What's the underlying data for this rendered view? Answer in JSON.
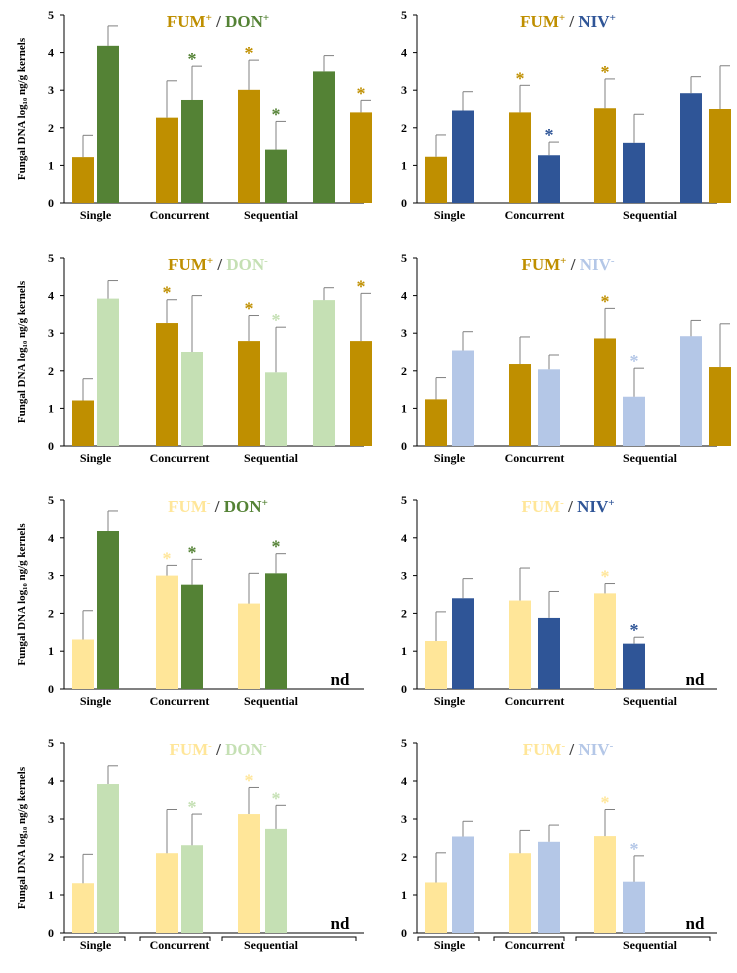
{
  "y_axis_label": "Fungal DNA log₁₀ ng/g kernels",
  "colors": {
    "fum_plus": "#BF8F00",
    "fum_minus": "#FFE699",
    "don_plus": "#548235",
    "don_minus": "#C5E0B4",
    "niv_plus": "#2F5597",
    "niv_minus": "#B4C7E7",
    "axis": "#000000",
    "error_bar": "#808080",
    "title_separator": "#404040"
  },
  "chart_data": [
    {
      "type": "bar",
      "title": {
        "left": "FUM",
        "left_sup": "+",
        "sep": " / ",
        "right": "DON",
        "right_sup": "+"
      },
      "title_colors": [
        "#BF8F00",
        "#548235"
      ],
      "ylim": [
        0,
        5
      ],
      "yticks": [
        0,
        1,
        2,
        3,
        4,
        5
      ],
      "ylabel": "Fungal DNA log₁₀ ng/g kernels",
      "groups": [
        {
          "label": "Single",
          "bars": [
            {
              "series": "FUM+",
              "value": 1.22,
              "err": 0.58,
              "color": "#BF8F00",
              "star": false
            },
            {
              "series": "DON+",
              "value": 4.18,
              "err": 0.53,
              "color": "#548235",
              "star": false
            }
          ]
        },
        {
          "label": "Concurrent",
          "bars": [
            {
              "series": "FUM+",
              "value": 2.27,
              "err": 0.98,
              "color": "#BF8F00",
              "star": false
            },
            {
              "series": "DON+",
              "value": 2.74,
              "err": 0.9,
              "color": "#548235",
              "star": true
            }
          ]
        },
        {
          "label": "Sequential",
          "bars": [
            {
              "series": "FUM+",
              "value": 3.01,
              "err": 0.79,
              "color": "#BF8F00",
              "star": true
            },
            {
              "series": "DON+",
              "value": 1.42,
              "err": 0.75,
              "color": "#548235",
              "star": true
            }
          ]
        },
        {
          "label": "",
          "bars": [
            {
              "series": "DON+",
              "value": 3.5,
              "err": 0.42,
              "color": "#548235",
              "star": false
            },
            {
              "series": "FUM+",
              "value": 2.41,
              "err": 0.32,
              "color": "#BF8F00",
              "star": true
            }
          ]
        }
      ],
      "group_labels": [
        "Single",
        "Concurrent",
        "Sequential"
      ],
      "nd": ""
    },
    {
      "type": "bar",
      "title": {
        "left": "FUM",
        "left_sup": "+",
        "sep": " / ",
        "right": "NIV",
        "right_sup": "+"
      },
      "title_colors": [
        "#BF8F00",
        "#2F5597"
      ],
      "ylim": [
        0,
        5
      ],
      "yticks": [
        0,
        1,
        2,
        3,
        4,
        5
      ],
      "ylabel": "",
      "groups": [
        {
          "label": "Single",
          "bars": [
            {
              "series": "FUM+",
              "value": 1.23,
              "err": 0.58,
              "color": "#BF8F00",
              "star": false
            },
            {
              "series": "NIV+",
              "value": 2.46,
              "err": 0.5,
              "color": "#2F5597",
              "star": false
            }
          ]
        },
        {
          "label": "Concurrent",
          "bars": [
            {
              "series": "FUM+",
              "value": 2.41,
              "err": 0.72,
              "color": "#BF8F00",
              "star": true
            },
            {
              "series": "NIV+",
              "value": 1.27,
              "err": 0.35,
              "color": "#2F5597",
              "star": true
            }
          ]
        },
        {
          "label": "Sequential",
          "bars": [
            {
              "series": "FUM+",
              "value": 2.52,
              "err": 0.78,
              "color": "#BF8F00",
              "star": true
            },
            {
              "series": "NIV+",
              "value": 1.6,
              "err": 0.76,
              "color": "#2F5597",
              "star": false
            }
          ]
        },
        {
          "label": "",
          "bars": [
            {
              "series": "NIV+",
              "value": 2.92,
              "err": 0.44,
              "color": "#2F5597",
              "star": false
            },
            {
              "series": "FUM+",
              "value": 2.5,
              "err": 1.15,
              "color": "#BF8F00",
              "star": false
            }
          ]
        }
      ],
      "group_labels": [
        "Single",
        "Concurrent",
        "Sequential"
      ],
      "nd": ""
    },
    {
      "type": "bar",
      "title": {
        "left": "FUM",
        "left_sup": "+",
        "sep": " / ",
        "right": "DON",
        "right_sup": "-"
      },
      "title_colors": [
        "#BF8F00",
        "#C5E0B4"
      ],
      "ylim": [
        0,
        5
      ],
      "yticks": [
        0,
        1,
        2,
        3,
        4,
        5
      ],
      "ylabel": "Fungal DNA log₁₀ ng/g kernels",
      "groups": [
        {
          "label": "Single",
          "bars": [
            {
              "series": "FUM+",
              "value": 1.21,
              "err": 0.58,
              "color": "#BF8F00",
              "star": false
            },
            {
              "series": "DON-",
              "value": 3.92,
              "err": 0.48,
              "color": "#C5E0B4",
              "star": false
            }
          ]
        },
        {
          "label": "Concurrent",
          "bars": [
            {
              "series": "FUM+",
              "value": 3.27,
              "err": 0.62,
              "color": "#BF8F00",
              "star": true
            },
            {
              "series": "DON-",
              "value": 2.5,
              "err": 1.5,
              "color": "#C5E0B4",
              "star": false
            }
          ]
        },
        {
          "label": "Sequential",
          "bars": [
            {
              "series": "FUM+",
              "value": 2.79,
              "err": 0.68,
              "color": "#BF8F00",
              "star": true
            },
            {
              "series": "DON-",
              "value": 1.96,
              "err": 1.2,
              "color": "#C5E0B4",
              "star": true
            }
          ]
        },
        {
          "label": "",
          "bars": [
            {
              "series": "DON-",
              "value": 3.88,
              "err": 0.33,
              "color": "#C5E0B4",
              "star": false
            },
            {
              "series": "FUM+",
              "value": 2.79,
              "err": 1.27,
              "color": "#BF8F00",
              "star": true
            }
          ]
        }
      ],
      "group_labels": [
        "Single",
        "Concurrent",
        "Sequential"
      ],
      "nd": ""
    },
    {
      "type": "bar",
      "title": {
        "left": "FUM",
        "left_sup": "+",
        "sep": " / ",
        "right": "NIV",
        "right_sup": "-"
      },
      "title_colors": [
        "#BF8F00",
        "#B4C7E7"
      ],
      "ylim": [
        0,
        5
      ],
      "yticks": [
        0,
        1,
        2,
        3,
        4,
        5
      ],
      "ylabel": "",
      "groups": [
        {
          "label": "Single",
          "bars": [
            {
              "series": "FUM+",
              "value": 1.24,
              "err": 0.58,
              "color": "#BF8F00",
              "star": false
            },
            {
              "series": "NIV-",
              "value": 2.54,
              "err": 0.5,
              "color": "#B4C7E7",
              "star": false
            }
          ]
        },
        {
          "label": "Concurrent",
          "bars": [
            {
              "series": "FUM+",
              "value": 2.18,
              "err": 0.72,
              "color": "#BF8F00",
              "star": false
            },
            {
              "series": "NIV-",
              "value": 2.04,
              "err": 0.38,
              "color": "#B4C7E7",
              "star": false
            }
          ]
        },
        {
          "label": "Sequential",
          "bars": [
            {
              "series": "FUM+",
              "value": 2.86,
              "err": 0.8,
              "color": "#BF8F00",
              "star": true
            },
            {
              "series": "NIV-",
              "value": 1.31,
              "err": 0.76,
              "color": "#B4C7E7",
              "star": true
            }
          ]
        },
        {
          "label": "",
          "bars": [
            {
              "series": "NIV-",
              "value": 2.92,
              "err": 0.42,
              "color": "#B4C7E7",
              "star": false
            },
            {
              "series": "FUM+",
              "value": 2.1,
              "err": 1.15,
              "color": "#BF8F00",
              "star": false
            }
          ]
        }
      ],
      "group_labels": [
        "Single",
        "Concurrent",
        "Sequential"
      ],
      "nd": ""
    },
    {
      "type": "bar",
      "title": {
        "left": "FUM",
        "left_sup": "-",
        "sep": " / ",
        "right": "DON",
        "right_sup": "+"
      },
      "title_colors": [
        "#FFE699",
        "#548235"
      ],
      "ylim": [
        0,
        5
      ],
      "yticks": [
        0,
        1,
        2,
        3,
        4,
        5
      ],
      "ylabel": "Fungal DNA log₁₀ ng/g kernels",
      "groups": [
        {
          "label": "Single",
          "bars": [
            {
              "series": "FUM-",
              "value": 1.31,
              "err": 0.76,
              "color": "#FFE699",
              "star": false
            },
            {
              "series": "DON+",
              "value": 4.18,
              "err": 0.53,
              "color": "#548235",
              "star": false
            }
          ]
        },
        {
          "label": "Concurrent",
          "bars": [
            {
              "series": "FUM-",
              "value": 3.0,
              "err": 0.27,
              "color": "#FFE699",
              "star": true
            },
            {
              "series": "DON+",
              "value": 2.76,
              "err": 0.67,
              "color": "#548235",
              "star": true
            }
          ]
        },
        {
          "label": "Sequential",
          "bars": [
            {
              "series": "FUM-",
              "value": 2.26,
              "err": 0.8,
              "color": "#FFE699",
              "star": false
            },
            {
              "series": "DON+",
              "value": 3.06,
              "err": 0.52,
              "color": "#548235",
              "star": true
            }
          ]
        }
      ],
      "group_labels": [
        "Single",
        "Concurrent",
        "Sequential"
      ],
      "nd": "nd"
    },
    {
      "type": "bar",
      "title": {
        "left": "FUM",
        "left_sup": "-",
        "sep": " / ",
        "right": "NIV",
        "right_sup": "+"
      },
      "title_colors": [
        "#FFE699",
        "#2F5597"
      ],
      "ylim": [
        0,
        5
      ],
      "yticks": [
        0,
        1,
        2,
        3,
        4,
        5
      ],
      "ylabel": "",
      "groups": [
        {
          "label": "Single",
          "bars": [
            {
              "series": "FUM-",
              "value": 1.27,
              "err": 0.77,
              "color": "#FFE699",
              "star": false
            },
            {
              "series": "NIV+",
              "value": 2.4,
              "err": 0.52,
              "color": "#2F5597",
              "star": false
            }
          ]
        },
        {
          "label": "Concurrent",
          "bars": [
            {
              "series": "FUM-",
              "value": 2.34,
              "err": 0.86,
              "color": "#FFE699",
              "star": false
            },
            {
              "series": "NIV+",
              "value": 1.88,
              "err": 0.7,
              "color": "#2F5597",
              "star": false
            }
          ]
        },
        {
          "label": "Sequential",
          "bars": [
            {
              "series": "FUM-",
              "value": 2.53,
              "err": 0.26,
              "color": "#FFE699",
              "star": true
            },
            {
              "series": "NIV+",
              "value": 1.2,
              "err": 0.17,
              "color": "#2F5597",
              "star": true
            }
          ]
        }
      ],
      "group_labels": [
        "Single",
        "Concurrent",
        "Sequential"
      ],
      "nd": "nd"
    },
    {
      "type": "bar",
      "title": {
        "left": "FUM",
        "left_sup": "-",
        "sep": " / ",
        "right": "DON",
        "right_sup": "-"
      },
      "title_colors": [
        "#FFE699",
        "#C5E0B4"
      ],
      "ylim": [
        0,
        5
      ],
      "yticks": [
        0,
        1,
        2,
        3,
        4,
        5
      ],
      "ylabel": "Fungal DNA log₁₀ ng/g kernels",
      "groups": [
        {
          "label": "Single",
          "bars": [
            {
              "series": "FUM-",
              "value": 1.31,
              "err": 0.76,
              "color": "#FFE699",
              "star": false
            },
            {
              "series": "DON-",
              "value": 3.92,
              "err": 0.48,
              "color": "#C5E0B4",
              "star": false
            }
          ]
        },
        {
          "label": "Concurrent",
          "bars": [
            {
              "series": "FUM-",
              "value": 2.1,
              "err": 1.15,
              "color": "#FFE699",
              "star": false
            },
            {
              "series": "DON-",
              "value": 2.31,
              "err": 0.82,
              "color": "#C5E0B4",
              "star": true
            }
          ]
        },
        {
          "label": "Sequential",
          "bars": [
            {
              "series": "FUM-",
              "value": 3.13,
              "err": 0.7,
              "color": "#FFE699",
              "star": true
            },
            {
              "series": "DON-",
              "value": 2.74,
              "err": 0.62,
              "color": "#C5E0B4",
              "star": true
            }
          ]
        }
      ],
      "group_labels": [
        "Single",
        "Concurrent",
        "Sequential"
      ],
      "nd": "nd",
      "brackets": true
    },
    {
      "type": "bar",
      "title": {
        "left": "FUM",
        "left_sup": "-",
        "sep": " / ",
        "right": "NIV",
        "right_sup": "-"
      },
      "title_colors": [
        "#FFE699",
        "#B4C7E7"
      ],
      "ylim": [
        0,
        5
      ],
      "yticks": [
        0,
        1,
        2,
        3,
        4,
        5
      ],
      "ylabel": "",
      "groups": [
        {
          "label": "Single",
          "bars": [
            {
              "series": "FUM-",
              "value": 1.33,
              "err": 0.78,
              "color": "#FFE699",
              "star": false
            },
            {
              "series": "NIV-",
              "value": 2.54,
              "err": 0.4,
              "color": "#B4C7E7",
              "star": false
            }
          ]
        },
        {
          "label": "Concurrent",
          "bars": [
            {
              "series": "FUM-",
              "value": 2.1,
              "err": 0.6,
              "color": "#FFE699",
              "star": false
            },
            {
              "series": "NIV-",
              "value": 2.4,
              "err": 0.44,
              "color": "#B4C7E7",
              "star": false
            }
          ]
        },
        {
          "label": "Sequential",
          "bars": [
            {
              "series": "FUM-",
              "value": 2.55,
              "err": 0.7,
              "color": "#FFE699",
              "star": true
            },
            {
              "series": "NIV-",
              "value": 1.35,
              "err": 0.68,
              "color": "#B4C7E7",
              "star": true
            }
          ]
        }
      ],
      "group_labels": [
        "Single",
        "Concurrent",
        "Sequential"
      ],
      "nd": "nd",
      "brackets": true
    }
  ]
}
